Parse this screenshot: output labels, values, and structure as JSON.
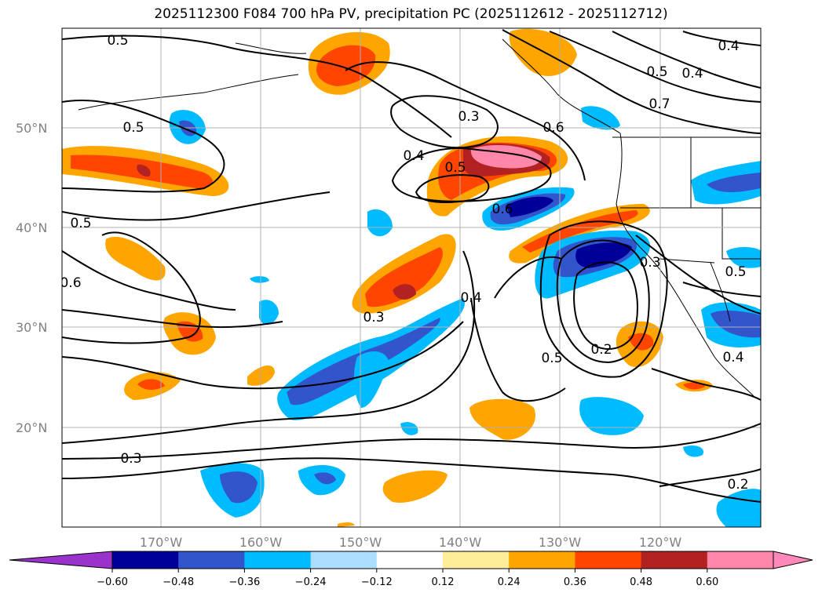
{
  "title": "2025112300 F084 700 hPa PV, precipitation PC (2025112612 - 2025112712)",
  "map": {
    "lat_ticks": [
      "50°N",
      "40°N",
      "30°N",
      "20°N"
    ],
    "lon_ticks": [
      "170°W",
      "160°W",
      "150°W",
      "140°W",
      "130°W",
      "120°W"
    ],
    "contour_labels": [
      "0.5",
      "0.5",
      "0.5",
      "0.6",
      "0.3",
      "0.4",
      "0.5",
      "0.6",
      "0.3",
      "0.4",
      "0.6",
      "0.5",
      "0.7",
      "0.4",
      "0.4",
      "0.3",
      "0.2",
      "0.5",
      "0.5",
      "0.4",
      "0.2",
      "0.3"
    ]
  },
  "colorbar": {
    "ticks": [
      "−0.60",
      "−0.48",
      "−0.36",
      "−0.24",
      "−0.12",
      "0.12",
      "0.24",
      "0.36",
      "0.48",
      "0.60"
    ],
    "colors": [
      "#9933cc",
      "#000099",
      "#3355cc",
      "#00bbff",
      "#aaddff",
      "#ffffff",
      "#ffee99",
      "#ffa500",
      "#ff4500",
      "#b22222",
      "#ff88aa",
      "#ff88bb"
    ]
  }
}
